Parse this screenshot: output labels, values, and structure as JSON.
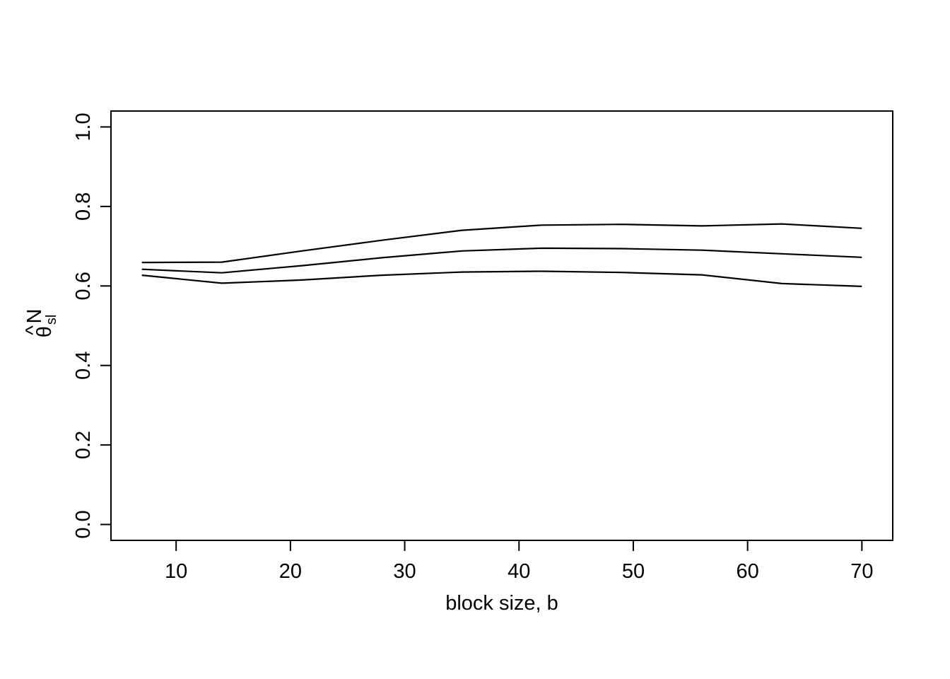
{
  "chart_data": {
    "type": "line",
    "title": "",
    "xlabel": "block size, b",
    "ylabel": {
      "base": "θ",
      "hat": "^",
      "superscript": "N",
      "subscript": "sl"
    },
    "x": [
      7,
      14,
      21,
      28,
      35,
      42,
      49,
      56,
      63,
      70
    ],
    "series": [
      {
        "values": [
          0.659,
          0.66,
          0.688,
          0.715,
          0.74,
          0.753,
          0.755,
          0.751,
          0.756,
          0.745
        ]
      },
      {
        "values": [
          0.642,
          0.633,
          0.651,
          0.671,
          0.688,
          0.695,
          0.694,
          0.69,
          0.681,
          0.672
        ]
      },
      {
        "values": [
          0.627,
          0.607,
          0.615,
          0.627,
          0.635,
          0.637,
          0.634,
          0.628,
          0.606,
          0.599
        ]
      }
    ],
    "xlim": [
      4.3,
      72.7
    ],
    "ylim": [
      -0.04,
      1.04
    ],
    "xticks": [
      10,
      20,
      30,
      40,
      50,
      60,
      70
    ],
    "xtick_labels": [
      "10",
      "20",
      "30",
      "40",
      "50",
      "60",
      "70"
    ],
    "yticks": [
      0.0,
      0.2,
      0.4,
      0.6,
      0.8,
      1.0
    ],
    "ytick_labels": [
      "0.0",
      "0.2",
      "0.4",
      "0.6",
      "0.8",
      "1.0"
    ],
    "grid": false,
    "line_color": "#000000"
  }
}
